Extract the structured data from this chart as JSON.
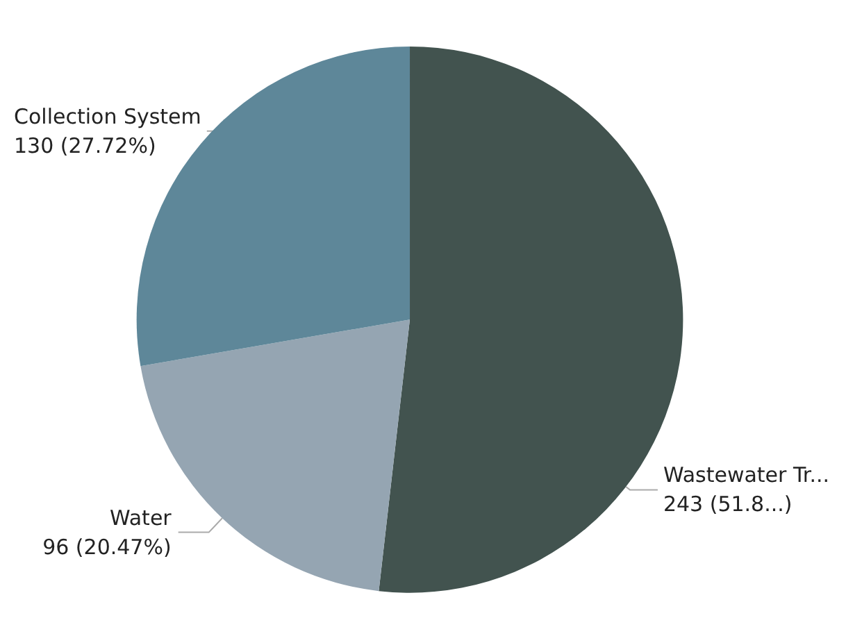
{
  "chart_data": {
    "type": "pie",
    "categories": [
      "Wastewater Tr...",
      "Water",
      "Collection System"
    ],
    "values": [
      243,
      96,
      130
    ],
    "value_labels": [
      "243 (51.8...)",
      "96 (20.47%)",
      "130 (27.72%)"
    ],
    "colors": [
      "#42534f",
      "#95a5b2",
      "#5e8799"
    ],
    "legend": false
  }
}
